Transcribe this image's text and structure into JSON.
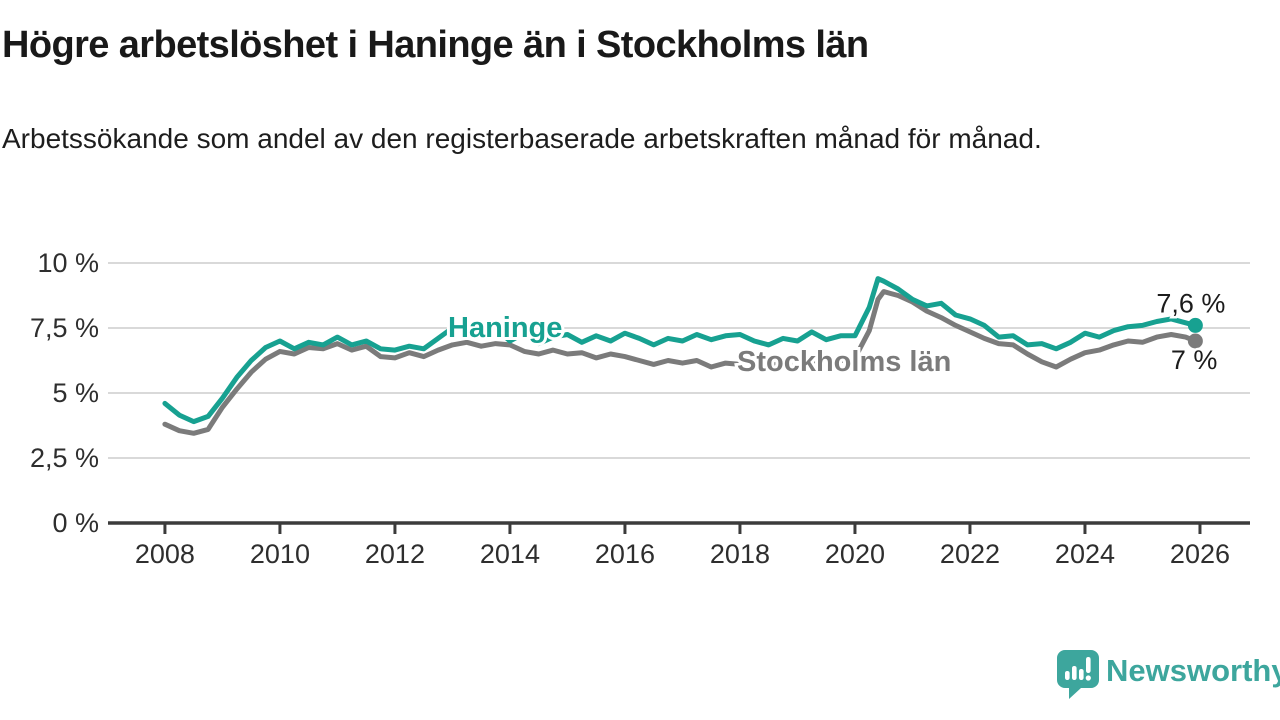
{
  "header": {
    "title": "Högre arbetslöshet i Haninge än i Stockholms län",
    "subtitle": "Arbetssökande som andel av den registerbaserade arbetskraften månad för månad."
  },
  "chart_data": {
    "type": "line",
    "title": "Högre arbetslöshet i Haninge än i Stockholms län",
    "xlabel": "",
    "ylabel": "",
    "grid": "horizontal",
    "xlim": [
      2007.01,
      2026.87
    ],
    "ylim": [
      0,
      10
    ],
    "xticks": [
      2008,
      2010,
      2012,
      2014,
      2016,
      2018,
      2020,
      2022,
      2024,
      2026
    ],
    "xtick_labels": [
      "2008",
      "2010",
      "2012",
      "2014",
      "2016",
      "2018",
      "2020",
      "2022",
      "2024",
      "2026"
    ],
    "yticks": [
      0,
      2.5,
      5,
      7.5,
      10
    ],
    "ytick_labels": [
      "0 %",
      "2,5 %",
      "5 %",
      "7,5 %",
      "10 %"
    ],
    "x": [
      2008,
      2008.25,
      2008.5,
      2008.75,
      2009,
      2009.25,
      2009.5,
      2009.75,
      2010,
      2010.25,
      2010.5,
      2010.75,
      2011,
      2011.25,
      2011.5,
      2011.75,
      2012,
      2012.25,
      2012.5,
      2012.75,
      2013,
      2013.25,
      2013.5,
      2013.75,
      2014,
      2014.25,
      2014.5,
      2014.75,
      2015,
      2015.25,
      2015.5,
      2015.75,
      2016,
      2016.25,
      2016.5,
      2016.75,
      2017,
      2017.25,
      2017.5,
      2017.75,
      2018,
      2018.25,
      2018.5,
      2018.75,
      2019,
      2019.25,
      2019.5,
      2019.75,
      2020,
      2020.25,
      2020.4,
      2020.5,
      2020.75,
      2021,
      2021.25,
      2021.5,
      2021.75,
      2022,
      2022.25,
      2022.5,
      2022.75,
      2023,
      2023.25,
      2023.5,
      2023.75,
      2024,
      2024.25,
      2024.5,
      2024.75,
      2025,
      2025.25,
      2025.5,
      2025.75,
      2025.92
    ],
    "series": [
      {
        "name": "Haninge",
        "slug": "haninge",
        "color": "#17a191",
        "end_label": "7,6 %",
        "values": [
          4.6,
          4.15,
          3.9,
          4.1,
          4.8,
          5.6,
          6.25,
          6.75,
          7.0,
          6.7,
          6.95,
          6.85,
          7.15,
          6.85,
          7.0,
          6.7,
          6.65,
          6.8,
          6.7,
          7.1,
          7.5,
          7.6,
          7.4,
          7.5,
          7.0,
          7.3,
          6.9,
          7.15,
          7.25,
          6.95,
          7.2,
          7.0,
          7.3,
          7.1,
          6.85,
          7.1,
          7.0,
          7.25,
          7.05,
          7.2,
          7.25,
          7.0,
          6.85,
          7.1,
          7.0,
          7.35,
          7.05,
          7.2,
          7.2,
          8.3,
          9.4,
          9.3,
          9.0,
          8.6,
          8.35,
          8.45,
          8.0,
          7.85,
          7.6,
          7.15,
          7.2,
          6.85,
          6.9,
          6.7,
          6.95,
          7.3,
          7.15,
          7.4,
          7.55,
          7.6,
          7.75,
          7.85,
          7.7,
          7.6
        ]
      },
      {
        "name": "Stockholms län",
        "slug": "stockholms-lan",
        "color": "#7b7b7b",
        "end_label": "7 %",
        "values": [
          3.8,
          3.55,
          3.45,
          3.6,
          4.45,
          5.15,
          5.8,
          6.3,
          6.6,
          6.5,
          6.75,
          6.7,
          6.9,
          6.65,
          6.8,
          6.4,
          6.35,
          6.55,
          6.4,
          6.65,
          6.85,
          6.95,
          6.8,
          6.9,
          6.85,
          6.6,
          6.5,
          6.65,
          6.5,
          6.55,
          6.35,
          6.5,
          6.4,
          6.25,
          6.1,
          6.25,
          6.15,
          6.25,
          6.0,
          6.15,
          6.1,
          6.2,
          6.05,
          6.15,
          6.05,
          6.2,
          6.1,
          6.25,
          6.35,
          7.4,
          8.6,
          8.9,
          8.75,
          8.5,
          8.15,
          7.9,
          7.6,
          7.35,
          7.1,
          6.9,
          6.85,
          6.5,
          6.2,
          6.0,
          6.3,
          6.55,
          6.65,
          6.85,
          7.0,
          6.95,
          7.15,
          7.25,
          7.15,
          7.0
        ]
      }
    ]
  },
  "colors": {
    "haninge": "#17a191",
    "stockholm": "#7b7b7b",
    "gridline": "#d9d9d9",
    "axis": "#3b3b3b",
    "tick_text": "#2e2e2e",
    "value_label_text": "#1c1c1c",
    "brand_teal": "#3da69d"
  },
  "footer": {
    "brand": "Newsworthy",
    "logo_icon": "speech-bubble-bar-chart-icon"
  }
}
